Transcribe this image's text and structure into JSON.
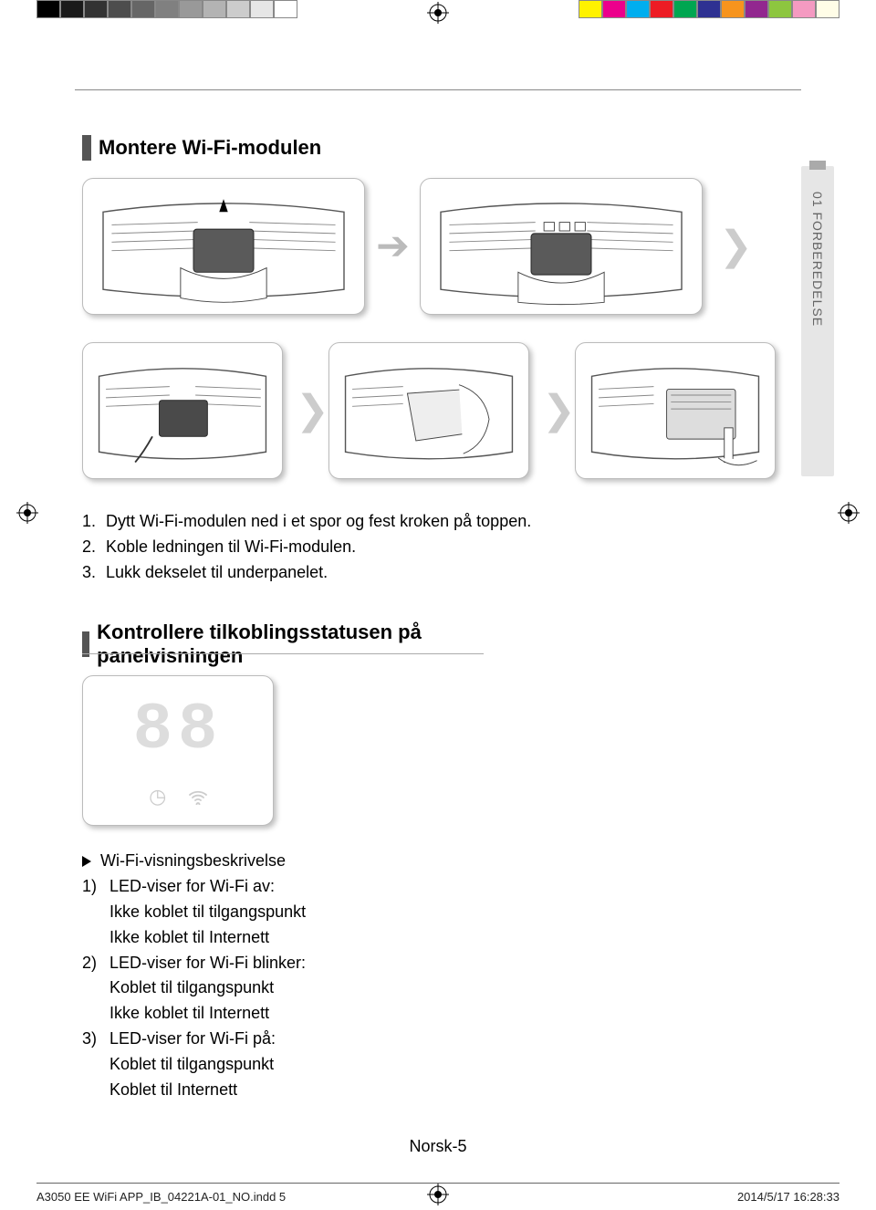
{
  "calibration": {
    "left_colors": [
      "#000000",
      "#1a1a1a",
      "#333333",
      "#4d4d4d",
      "#666666",
      "#808080",
      "#999999",
      "#b3b3b3",
      "#cccccc",
      "#e6e6e6",
      "#ffffff"
    ],
    "right_colors": [
      "#fff200",
      "#ec008c",
      "#00aeef",
      "#ed1c24",
      "#00a651",
      "#2e3192",
      "#f7941d",
      "#92278f",
      "#8dc63f",
      "#f49ac1",
      "#fffde7"
    ]
  },
  "side_tab": "01  FORBEREDELSE",
  "section1": {
    "title": "Montere Wi-Fi-modulen",
    "steps": [
      {
        "n": "1.",
        "text": "Dytt Wi-Fi-modulen ned i et spor og fest kroken på toppen."
      },
      {
        "n": "2.",
        "text": "Koble ledningen til Wi-Fi-modulen."
      },
      {
        "n": "3.",
        "text": "Lukk dekselet til underpanelet."
      }
    ]
  },
  "section2": {
    "title": "Kontrollere tilkoblingsstatusen på panelvisningen",
    "panel_digits": "88",
    "lead": "Wi-Fi-visningsbeskrivelse",
    "items": [
      {
        "n": "1)",
        "head": "LED-viser for Wi-Fi av:",
        "subs": [
          "Ikke koblet til tilgangspunkt",
          "Ikke koblet til Internett"
        ]
      },
      {
        "n": "2)",
        "head": "LED-viser for Wi-Fi blinker:",
        "subs": [
          "Koblet til tilgangspunkt",
          "Ikke koblet til Internett"
        ]
      },
      {
        "n": "3)",
        "head": "LED-viser for Wi-Fi på:",
        "subs": [
          "Koblet til tilgangspunkt",
          "Koblet til Internett"
        ]
      }
    ]
  },
  "page_number": "Norsk-5",
  "footer": {
    "file": "A3050 EE WiFi APP_IB_04221A-01_NO.indd   5",
    "date": "2014/5/17   16:28:33"
  }
}
